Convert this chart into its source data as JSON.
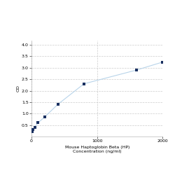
{
  "x_data": [
    0,
    6.25,
    12.5,
    25,
    50,
    100,
    200,
    400,
    800,
    1600,
    2000
  ],
  "y_data": [
    0.2,
    0.22,
    0.25,
    0.3,
    0.4,
    0.6,
    0.85,
    1.4,
    2.3,
    2.9,
    3.25
  ],
  "line_color": "#b8d4ea",
  "marker_color": "#1a3060",
  "marker_size": 3.5,
  "xlim": [
    0,
    2000
  ],
  "ylim": [
    0,
    4.2
  ],
  "yticks": [
    0.5,
    1.0,
    1.5,
    2.0,
    2.5,
    3.0,
    3.5,
    4.0
  ],
  "xticks": [
    0,
    1000,
    2000
  ],
  "xlabel_line1": "Mouse Haptoglobin Beta (HP)",
  "xlabel_line2": "Concentration (ng/ml)",
  "ylabel": "OD",
  "grid_color": "#cccccc",
  "bg_color": "#ffffff",
  "tick_font_size": 4.5,
  "label_font_size": 4.5
}
